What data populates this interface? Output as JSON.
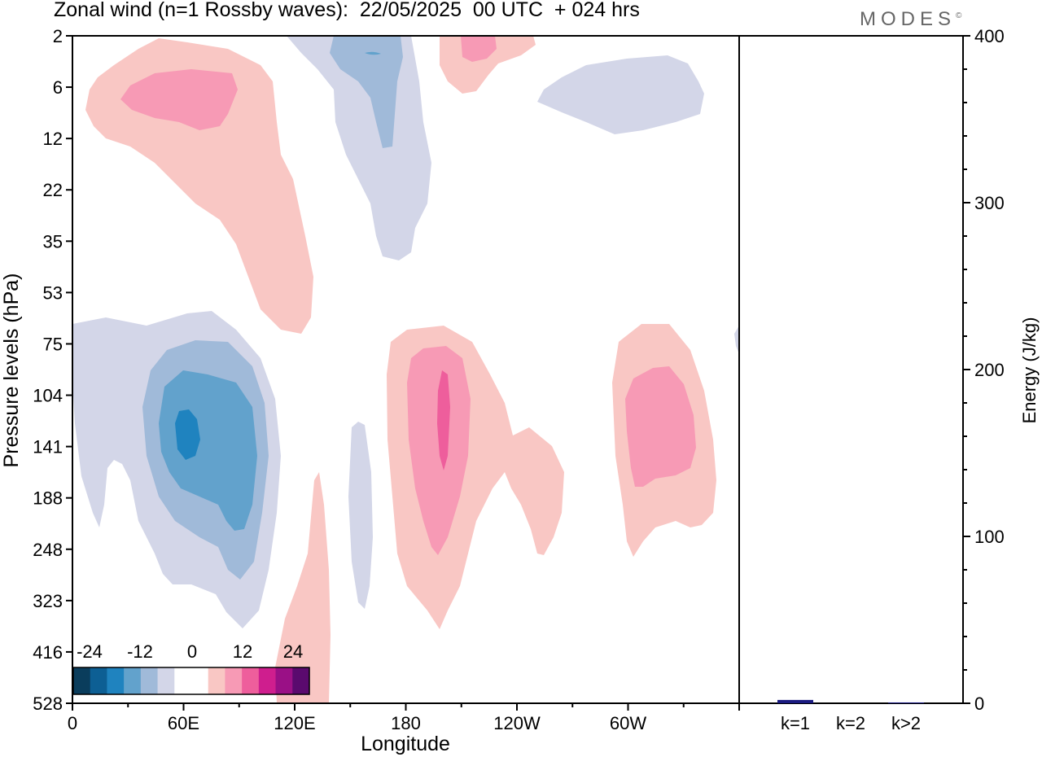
{
  "title": "Zonal wind (n=1 Rossby waves):  22/05/2025  00 UTC  + 024 hrs",
  "brand": "MODES",
  "brand_mark": "©",
  "chart_data": [
    {
      "type": "heatmap",
      "title": "Zonal wind (n=1 Rossby waves):  22/05/2025  00 UTC  + 024 hrs",
      "xlabel": "Longitude",
      "ylabel": "Pressure levels (hPa)",
      "x_ticks": [
        "0",
        "60E",
        "120E",
        "180",
        "120W",
        "60W"
      ],
      "y_ticks": [
        "2",
        "6",
        "12",
        "22",
        "35",
        "53",
        "75",
        "104",
        "141",
        "188",
        "248",
        "323",
        "416",
        "528"
      ],
      "colorbar": {
        "labels": [
          "-24",
          "-12",
          "0",
          "12",
          "24"
        ],
        "colors": [
          "#0a3d5c",
          "#0d5f94",
          "#1f83bf",
          "#62a2cc",
          "#a0bad9",
          "#d3d6e8",
          "#ffffff",
          "#ffffff",
          "#f9c7c4",
          "#f79ab5",
          "#ee5e9c",
          "#cf1e8e",
          "#9a1086",
          "#5a0a6e"
        ]
      },
      "contour_colors": {
        "neg_light": "#d3d6e8",
        "neg_mid": "#a0bad9",
        "neg_strong": "#62a2cc",
        "neg_max": "#1f83bf",
        "pos_light": "#f9c7c4",
        "pos_mid": "#f79ab5",
        "pos_strong": "#ee5e9c"
      }
    },
    {
      "type": "bar",
      "ylabel": "Energy (J/kg)",
      "ylim": [
        0,
        400
      ],
      "y_ticks": [
        "0",
        "100",
        "200",
        "300",
        "400"
      ],
      "categories": [
        "k=1",
        "k=2",
        "k>2"
      ],
      "values": [
        2,
        0,
        0.5
      ],
      "bar_color": "#1a1a80"
    }
  ]
}
